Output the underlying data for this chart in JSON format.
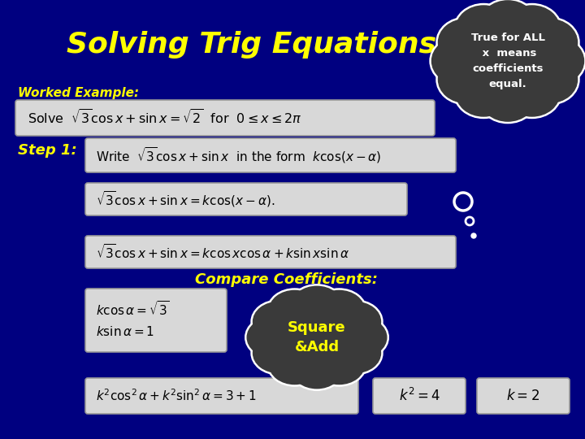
{
  "background_color": "#000080",
  "title": "Solving Trig Equations",
  "title_color": "#FFFF00",
  "title_fontsize": 26,
  "worked_example_label": "Worked Example:",
  "worked_example_color": "#FFFF00",
  "step1_label": "Step 1:",
  "step1_color": "#FFFF00",
  "compare_label": "Compare Coefficients:",
  "compare_color": "#FFFF00",
  "cloud1_text": "True for ALL\n x  means\ncoefficients\nequal.",
  "cloud1_color": "#3a3a3a",
  "cloud1_text_color": "#FFFFFF",
  "cloud2_text": "Square\n&Add",
  "cloud2_color": "#3a3a3a",
  "cloud2_text_color": "#FFFF00",
  "box_bg": "#d8d8d8",
  "box_border": "#aaaaaa"
}
